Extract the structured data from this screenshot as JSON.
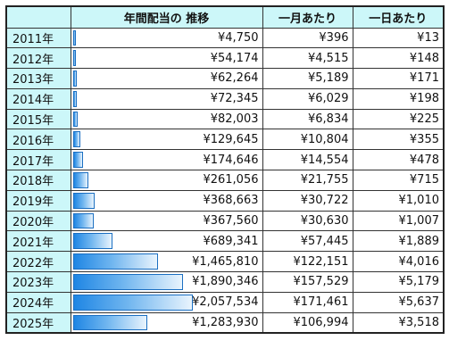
{
  "header": {
    "annual": "年間配当の 推移",
    "monthly": "一月あたり",
    "daily": "一日あたり"
  },
  "rows": [
    {
      "year": "2011年",
      "annual": "¥4,750",
      "monthly": "¥396",
      "daily": "¥13",
      "value": 4750
    },
    {
      "year": "2012年",
      "annual": "¥54,174",
      "monthly": "¥4,515",
      "daily": "¥148",
      "value": 54174
    },
    {
      "year": "2013年",
      "annual": "¥62,264",
      "monthly": "¥5,189",
      "daily": "¥171",
      "value": 62264
    },
    {
      "year": "2014年",
      "annual": "¥72,345",
      "monthly": "¥6,029",
      "daily": "¥198",
      "value": 72345
    },
    {
      "year": "2015年",
      "annual": "¥82,003",
      "monthly": "¥6,834",
      "daily": "¥225",
      "value": 82003
    },
    {
      "year": "2016年",
      "annual": "¥129,645",
      "monthly": "¥10,804",
      "daily": "¥355",
      "value": 129645
    },
    {
      "year": "2017年",
      "annual": "¥174,646",
      "monthly": "¥14,554",
      "daily": "¥478",
      "value": 174646
    },
    {
      "year": "2018年",
      "annual": "¥261,056",
      "monthly": "¥21,755",
      "daily": "¥715",
      "value": 261056
    },
    {
      "year": "2019年",
      "annual": "¥368,663",
      "monthly": "¥30,722",
      "daily": "¥1,010",
      "value": 368663
    },
    {
      "year": "2020年",
      "annual": "¥367,560",
      "monthly": "¥30,630",
      "daily": "¥1,007",
      "value": 367560
    },
    {
      "year": "2021年",
      "annual": "¥689,341",
      "monthly": "¥57,445",
      "daily": "¥1,889",
      "value": 689341
    },
    {
      "year": "2022年",
      "annual": "¥1,465,810",
      "monthly": "¥122,151",
      "daily": "¥4,016",
      "value": 1465810
    },
    {
      "year": "2023年",
      "annual": "¥1,890,346",
      "monthly": "¥157,529",
      "daily": "¥5,179",
      "value": 1890346
    },
    {
      "year": "2024年",
      "annual": "¥2,057,534",
      "monthly": "¥171,461",
      "daily": "¥5,637",
      "value": 2057534
    },
    {
      "year": "2025年",
      "annual": "¥1,283,930",
      "monthly": "¥106,994",
      "daily": "¥3,518",
      "value": 1283930
    }
  ],
  "colors": {
    "header_bg": "#ccf7f9",
    "bar_start": "#1f86e4",
    "bar_end": "#e9f4fd"
  }
}
